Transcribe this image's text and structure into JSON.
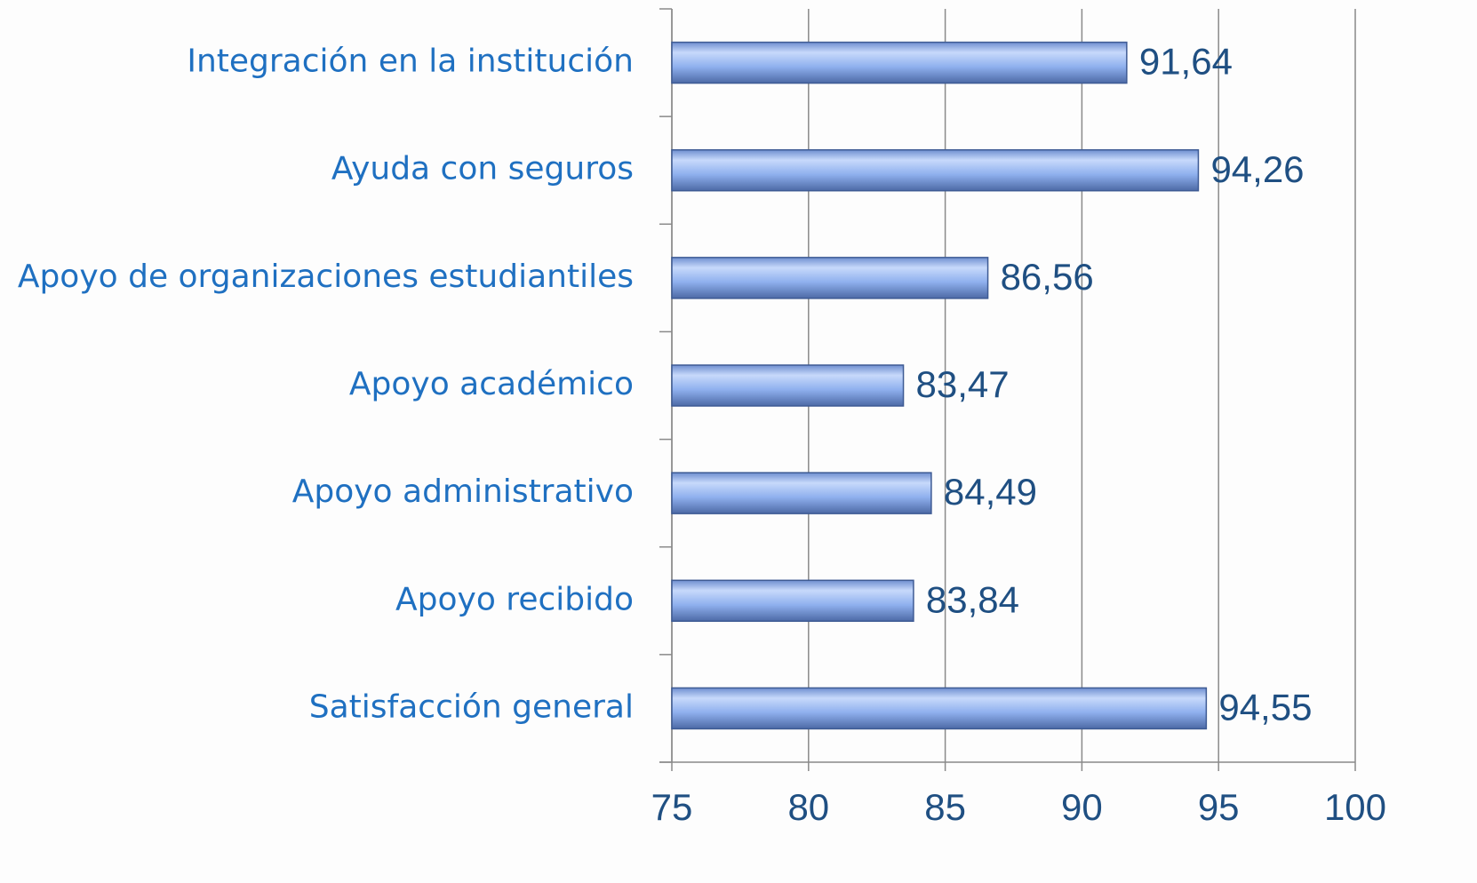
{
  "chart_data": {
    "type": "bar",
    "orientation": "horizontal",
    "categories": [
      "Integración en la institución",
      "Ayuda con seguros",
      "Apoyo de organizaciones estudiantiles",
      "Apoyo académico",
      "Apoyo administrativo",
      "Apoyo recibido",
      "Satisfacción general"
    ],
    "values": [
      91.64,
      94.26,
      86.56,
      83.47,
      84.49,
      83.84,
      94.55
    ],
    "value_labels": [
      "91,64",
      "94,26",
      "86,56",
      "83,47",
      "84,49",
      "83,84",
      "94,55"
    ],
    "color": "#8fb0ee",
    "xlim": [
      75,
      100
    ],
    "xticks": [
      75,
      80,
      85,
      90,
      95,
      100
    ],
    "grid": true
  }
}
